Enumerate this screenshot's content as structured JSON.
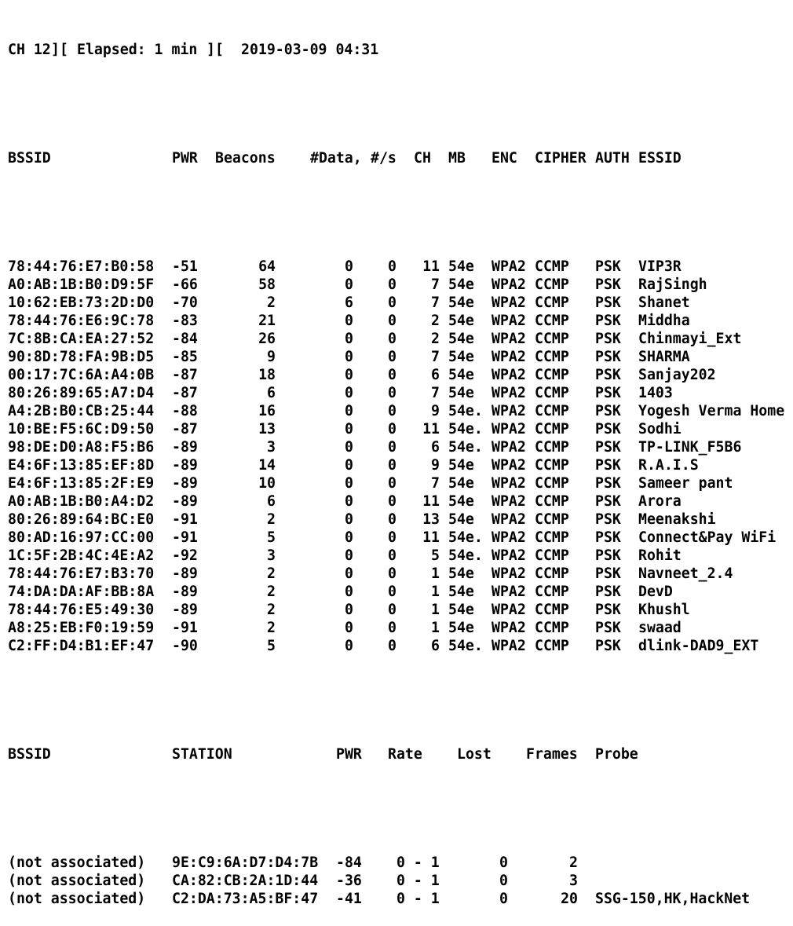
{
  "header": {
    "channel": "CH 12",
    "elapsed": "Elapsed: 1 min",
    "timestamp": "2019-03-09 04:31"
  },
  "ap_headers": {
    "bssid": "BSSID",
    "pwr": "PWR",
    "beacons": "Beacons",
    "data": "#Data,",
    "per_sec": "#/s",
    "ch": "CH",
    "mb": "MB",
    "enc": "ENC",
    "cipher": "CIPHER",
    "auth": "AUTH",
    "essid": "ESSID"
  },
  "access_points": [
    {
      "bssid": "78:44:76:E7:B0:58",
      "pwr": "-51",
      "beacons": "64",
      "data": "0",
      "per_sec": "0",
      "ch": "11",
      "mb": "54e",
      "enc": "WPA2",
      "cipher": "CCMP",
      "auth": "PSK",
      "essid": "VIP3R"
    },
    {
      "bssid": "A0:AB:1B:B0:D9:5F",
      "pwr": "-66",
      "beacons": "58",
      "data": "0",
      "per_sec": "0",
      "ch": "7",
      "mb": "54e",
      "enc": "WPA2",
      "cipher": "CCMP",
      "auth": "PSK",
      "essid": "RajSingh"
    },
    {
      "bssid": "10:62:EB:73:2D:D0",
      "pwr": "-70",
      "beacons": "2",
      "data": "6",
      "per_sec": "0",
      "ch": "7",
      "mb": "54e",
      "enc": "WPA2",
      "cipher": "CCMP",
      "auth": "PSK",
      "essid": "Shanet"
    },
    {
      "bssid": "78:44:76:E6:9C:78",
      "pwr": "-83",
      "beacons": "21",
      "data": "0",
      "per_sec": "0",
      "ch": "2",
      "mb": "54e",
      "enc": "WPA2",
      "cipher": "CCMP",
      "auth": "PSK",
      "essid": "Middha"
    },
    {
      "bssid": "7C:8B:CA:EA:27:52",
      "pwr": "-84",
      "beacons": "26",
      "data": "0",
      "per_sec": "0",
      "ch": "2",
      "mb": "54e",
      "enc": "WPA2",
      "cipher": "CCMP",
      "auth": "PSK",
      "essid": "Chinmayi_Ext"
    },
    {
      "bssid": "90:8D:78:FA:9B:D5",
      "pwr": "-85",
      "beacons": "9",
      "data": "0",
      "per_sec": "0",
      "ch": "7",
      "mb": "54e",
      "enc": "WPA2",
      "cipher": "CCMP",
      "auth": "PSK",
      "essid": "SHARMA"
    },
    {
      "bssid": "00:17:7C:6A:A4:0B",
      "pwr": "-87",
      "beacons": "18",
      "data": "0",
      "per_sec": "0",
      "ch": "6",
      "mb": "54e",
      "enc": "WPA2",
      "cipher": "CCMP",
      "auth": "PSK",
      "essid": "Sanjay202"
    },
    {
      "bssid": "80:26:89:65:A7:D4",
      "pwr": "-87",
      "beacons": "6",
      "data": "0",
      "per_sec": "0",
      "ch": "7",
      "mb": "54e",
      "enc": "WPA2",
      "cipher": "CCMP",
      "auth": "PSK",
      "essid": "1403"
    },
    {
      "bssid": "A4:2B:B0:CB:25:44",
      "pwr": "-88",
      "beacons": "16",
      "data": "0",
      "per_sec": "0",
      "ch": "9",
      "mb": "54e.",
      "enc": "WPA2",
      "cipher": "CCMP",
      "auth": "PSK",
      "essid": "Yogesh Verma Home"
    },
    {
      "bssid": "10:BE:F5:6C:D9:50",
      "pwr": "-87",
      "beacons": "13",
      "data": "0",
      "per_sec": "0",
      "ch": "11",
      "mb": "54e.",
      "enc": "WPA2",
      "cipher": "CCMP",
      "auth": "PSK",
      "essid": "Sodhi"
    },
    {
      "bssid": "98:DE:D0:A8:F5:B6",
      "pwr": "-89",
      "beacons": "3",
      "data": "0",
      "per_sec": "0",
      "ch": "6",
      "mb": "54e.",
      "enc": "WPA2",
      "cipher": "CCMP",
      "auth": "PSK",
      "essid": "TP-LINK_F5B6"
    },
    {
      "bssid": "E4:6F:13:85:EF:8D",
      "pwr": "-89",
      "beacons": "14",
      "data": "0",
      "per_sec": "0",
      "ch": "9",
      "mb": "54e",
      "enc": "WPA2",
      "cipher": "CCMP",
      "auth": "PSK",
      "essid": "R.A.I.S"
    },
    {
      "bssid": "E4:6F:13:85:2F:E9",
      "pwr": "-89",
      "beacons": "10",
      "data": "0",
      "per_sec": "0",
      "ch": "7",
      "mb": "54e",
      "enc": "WPA2",
      "cipher": "CCMP",
      "auth": "PSK",
      "essid": "Sameer pant"
    },
    {
      "bssid": "A0:AB:1B:B0:A4:D2",
      "pwr": "-89",
      "beacons": "6",
      "data": "0",
      "per_sec": "0",
      "ch": "11",
      "mb": "54e",
      "enc": "WPA2",
      "cipher": "CCMP",
      "auth": "PSK",
      "essid": "Arora"
    },
    {
      "bssid": "80:26:89:64:BC:E0",
      "pwr": "-91",
      "beacons": "2",
      "data": "0",
      "per_sec": "0",
      "ch": "13",
      "mb": "54e",
      "enc": "WPA2",
      "cipher": "CCMP",
      "auth": "PSK",
      "essid": "Meenakshi"
    },
    {
      "bssid": "80:AD:16:97:CC:00",
      "pwr": "-91",
      "beacons": "5",
      "data": "0",
      "per_sec": "0",
      "ch": "11",
      "mb": "54e.",
      "enc": "WPA2",
      "cipher": "CCMP",
      "auth": "PSK",
      "essid": "Connect&Pay WiFi"
    },
    {
      "bssid": "1C:5F:2B:4C:4E:A2",
      "pwr": "-92",
      "beacons": "3",
      "data": "0",
      "per_sec": "0",
      "ch": "5",
      "mb": "54e.",
      "enc": "WPA2",
      "cipher": "CCMP",
      "auth": "PSK",
      "essid": "Rohit"
    },
    {
      "bssid": "78:44:76:E7:B3:70",
      "pwr": "-89",
      "beacons": "2",
      "data": "0",
      "per_sec": "0",
      "ch": "1",
      "mb": "54e",
      "enc": "WPA2",
      "cipher": "CCMP",
      "auth": "PSK",
      "essid": "Navneet_2.4"
    },
    {
      "bssid": "74:DA:DA:AF:BB:8A",
      "pwr": "-89",
      "beacons": "2",
      "data": "0",
      "per_sec": "0",
      "ch": "1",
      "mb": "54e",
      "enc": "WPA2",
      "cipher": "CCMP",
      "auth": "PSK",
      "essid": "DevD"
    },
    {
      "bssid": "78:44:76:E5:49:30",
      "pwr": "-89",
      "beacons": "2",
      "data": "0",
      "per_sec": "0",
      "ch": "1",
      "mb": "54e",
      "enc": "WPA2",
      "cipher": "CCMP",
      "auth": "PSK",
      "essid": "Khushl"
    },
    {
      "bssid": "A8:25:EB:F0:19:59",
      "pwr": "-91",
      "beacons": "2",
      "data": "0",
      "per_sec": "0",
      "ch": "1",
      "mb": "54e",
      "enc": "WPA2",
      "cipher": "CCMP",
      "auth": "PSK",
      "essid": "swaad"
    },
    {
      "bssid": "C2:FF:D4:B1:EF:47",
      "pwr": "-90",
      "beacons": "5",
      "data": "0",
      "per_sec": "0",
      "ch": "6",
      "mb": "54e.",
      "enc": "WPA2",
      "cipher": "CCMP",
      "auth": "PSK",
      "essid": "dlink-DAD9_EXT"
    }
  ],
  "station_headers": {
    "bssid": "BSSID",
    "station": "STATION",
    "pwr": "PWR",
    "rate": "Rate",
    "lost": "Lost",
    "frames": "Frames",
    "probe": "Probe"
  },
  "stations": [
    {
      "bssid": "(not associated)",
      "station": "9E:C9:6A:D7:D4:7B",
      "pwr": "-84",
      "rate": "0 - 1",
      "lost": "0",
      "frames": "2",
      "probe": ""
    },
    {
      "bssid": "(not associated)",
      "station": "CA:82:CB:2A:1D:44",
      "pwr": "-36",
      "rate": "0 - 1",
      "lost": "0",
      "frames": "3",
      "probe": ""
    },
    {
      "bssid": "(not associated)",
      "station": "C2:DA:73:A5:BF:47",
      "pwr": "-41",
      "rate": "0 - 1",
      "lost": "0",
      "frames": "20",
      "probe": "SSG-150,HK,HackNet"
    }
  ]
}
